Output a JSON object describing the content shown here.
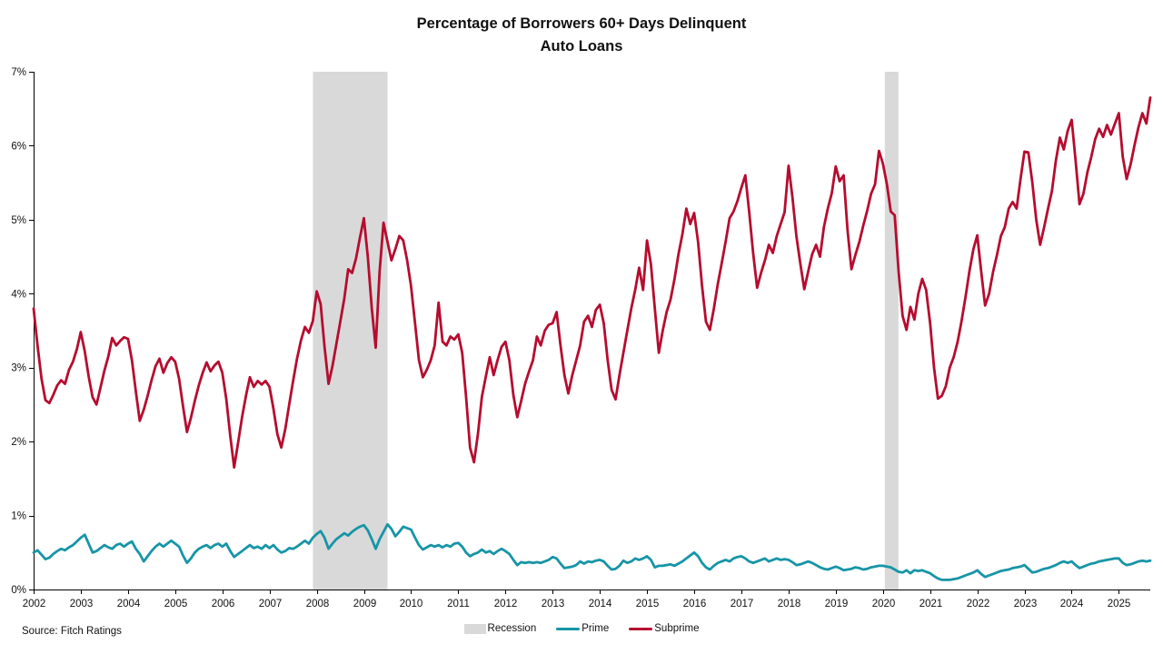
{
  "title": {
    "line1": "Percentage of Borrowers 60+ Days Delinquent",
    "line2": "Auto Loans"
  },
  "source": "Source: Fitch Ratings",
  "legend": [
    {
      "label": "Recession",
      "type": "box",
      "color": "#d9d9d9"
    },
    {
      "label": "Prime",
      "type": "line",
      "color": "#1795a6"
    },
    {
      "label": "Subprime",
      "type": "line",
      "color": "#b60c2f"
    }
  ],
  "chart_data": {
    "type": "line",
    "title": "Percentage of Borrowers 60+ Days Delinquent",
    "subtitle": "Auto Loans",
    "x_start_year": 2002,
    "x_interval": "monthly",
    "x_end_label": "Sep 2025",
    "ylim": [
      0,
      7
    ],
    "y_tick_labels": [
      "0%",
      "1%",
      "2%",
      "3%",
      "4%",
      "5%",
      "6%",
      "7%"
    ],
    "x_tick_years": [
      2002,
      2003,
      2004,
      2005,
      2006,
      2007,
      2008,
      2009,
      2010,
      2011,
      2012,
      2013,
      2014,
      2015,
      2016,
      2017,
      2018,
      2019,
      2020,
      2021,
      2022,
      2023,
      2024,
      2025
    ],
    "grid": false,
    "legend_position": "bottom",
    "recessions": [
      {
        "start_year": 2007.92,
        "end_year": 2009.5
      },
      {
        "start_year": 2020.04,
        "end_year": 2020.33
      }
    ],
    "series": [
      {
        "name": "Prime",
        "color": "#1795a6",
        "values": [
          0.5,
          0.53,
          0.47,
          0.41,
          0.43,
          0.48,
          0.52,
          0.55,
          0.53,
          0.57,
          0.6,
          0.65,
          0.7,
          0.74,
          0.62,
          0.5,
          0.52,
          0.56,
          0.6,
          0.57,
          0.55,
          0.6,
          0.62,
          0.58,
          0.62,
          0.65,
          0.55,
          0.48,
          0.38,
          0.45,
          0.52,
          0.58,
          0.62,
          0.58,
          0.62,
          0.66,
          0.62,
          0.58,
          0.46,
          0.36,
          0.42,
          0.5,
          0.55,
          0.58,
          0.6,
          0.56,
          0.6,
          0.62,
          0.58,
          0.62,
          0.52,
          0.44,
          0.48,
          0.52,
          0.56,
          0.6,
          0.56,
          0.58,
          0.55,
          0.6,
          0.56,
          0.6,
          0.54,
          0.5,
          0.52,
          0.56,
          0.55,
          0.58,
          0.62,
          0.66,
          0.62,
          0.7,
          0.75,
          0.79,
          0.7,
          0.55,
          0.62,
          0.68,
          0.72,
          0.76,
          0.73,
          0.78,
          0.82,
          0.85,
          0.87,
          0.8,
          0.68,
          0.55,
          0.68,
          0.78,
          0.88,
          0.82,
          0.72,
          0.78,
          0.85,
          0.83,
          0.81,
          0.7,
          0.6,
          0.54,
          0.57,
          0.6,
          0.58,
          0.6,
          0.57,
          0.6,
          0.58,
          0.62,
          0.63,
          0.58,
          0.5,
          0.45,
          0.48,
          0.5,
          0.54,
          0.5,
          0.52,
          0.48,
          0.52,
          0.55,
          0.52,
          0.48,
          0.4,
          0.33,
          0.37,
          0.36,
          0.37,
          0.36,
          0.37,
          0.36,
          0.38,
          0.4,
          0.44,
          0.42,
          0.35,
          0.29,
          0.3,
          0.31,
          0.33,
          0.38,
          0.35,
          0.38,
          0.37,
          0.39,
          0.4,
          0.38,
          0.32,
          0.27,
          0.28,
          0.32,
          0.39,
          0.36,
          0.38,
          0.42,
          0.4,
          0.42,
          0.45,
          0.4,
          0.3,
          0.32,
          0.32,
          0.33,
          0.34,
          0.32,
          0.35,
          0.38,
          0.42,
          0.46,
          0.5,
          0.45,
          0.36,
          0.3,
          0.27,
          0.32,
          0.36,
          0.38,
          0.4,
          0.38,
          0.42,
          0.44,
          0.45,
          0.42,
          0.38,
          0.36,
          0.38,
          0.4,
          0.42,
          0.38,
          0.4,
          0.42,
          0.4,
          0.41,
          0.4,
          0.37,
          0.33,
          0.34,
          0.36,
          0.38,
          0.36,
          0.33,
          0.3,
          0.28,
          0.27,
          0.29,
          0.31,
          0.29,
          0.26,
          0.27,
          0.28,
          0.3,
          0.29,
          0.27,
          0.28,
          0.3,
          0.31,
          0.32,
          0.32,
          0.31,
          0.3,
          0.27,
          0.24,
          0.23,
          0.26,
          0.22,
          0.26,
          0.25,
          0.26,
          0.24,
          0.22,
          0.18,
          0.15,
          0.13,
          0.13,
          0.13,
          0.14,
          0.15,
          0.17,
          0.19,
          0.21,
          0.23,
          0.26,
          0.21,
          0.17,
          0.19,
          0.21,
          0.23,
          0.25,
          0.26,
          0.27,
          0.29,
          0.3,
          0.31,
          0.33,
          0.28,
          0.23,
          0.24,
          0.26,
          0.28,
          0.29,
          0.31,
          0.33,
          0.36,
          0.38,
          0.36,
          0.38,
          0.33,
          0.29,
          0.31,
          0.33,
          0.35,
          0.36,
          0.38,
          0.39,
          0.4,
          0.41,
          0.42,
          0.42,
          0.36,
          0.33,
          0.34,
          0.36,
          0.38,
          0.39,
          0.38,
          0.39
        ]
      },
      {
        "name": "Subprime",
        "color": "#b60c2f",
        "values": [
          3.8,
          3.3,
          2.85,
          2.56,
          2.52,
          2.63,
          2.76,
          2.83,
          2.78,
          2.97,
          3.08,
          3.25,
          3.48,
          3.22,
          2.88,
          2.6,
          2.5,
          2.73,
          2.96,
          3.15,
          3.4,
          3.3,
          3.36,
          3.41,
          3.39,
          3.1,
          2.68,
          2.28,
          2.43,
          2.62,
          2.83,
          3.02,
          3.12,
          2.93,
          3.06,
          3.14,
          3.08,
          2.85,
          2.48,
          2.13,
          2.32,
          2.55,
          2.76,
          2.93,
          3.07,
          2.95,
          3.03,
          3.08,
          2.93,
          2.58,
          2.08,
          1.65,
          1.98,
          2.33,
          2.62,
          2.87,
          2.74,
          2.82,
          2.77,
          2.82,
          2.74,
          2.44,
          2.1,
          1.92,
          2.17,
          2.5,
          2.82,
          3.12,
          3.37,
          3.55,
          3.47,
          3.63,
          4.03,
          3.86,
          3.28,
          2.78,
          3.02,
          3.32,
          3.62,
          3.93,
          4.33,
          4.28,
          4.48,
          4.76,
          5.02,
          4.5,
          3.8,
          3.27,
          4.3,
          4.96,
          4.7,
          4.45,
          4.6,
          4.78,
          4.72,
          4.45,
          4.1,
          3.6,
          3.1,
          2.87,
          2.97,
          3.1,
          3.3,
          3.88,
          3.35,
          3.3,
          3.42,
          3.38,
          3.45,
          3.2,
          2.6,
          1.92,
          1.72,
          2.1,
          2.6,
          2.88,
          3.14,
          2.9,
          3.1,
          3.28,
          3.35,
          3.1,
          2.63,
          2.33,
          2.55,
          2.78,
          2.95,
          3.1,
          3.42,
          3.3,
          3.5,
          3.58,
          3.6,
          3.75,
          3.3,
          2.9,
          2.65,
          2.9,
          3.1,
          3.3,
          3.62,
          3.7,
          3.55,
          3.78,
          3.85,
          3.6,
          3.1,
          2.7,
          2.57,
          2.9,
          3.2,
          3.5,
          3.8,
          4.05,
          4.35,
          4.05,
          4.72,
          4.4,
          3.8,
          3.2,
          3.5,
          3.75,
          3.92,
          4.2,
          4.53,
          4.8,
          5.15,
          4.94,
          5.09,
          4.7,
          4.1,
          3.62,
          3.51,
          3.8,
          4.13,
          4.41,
          4.7,
          5.02,
          5.11,
          5.25,
          5.43,
          5.6,
          5.1,
          4.55,
          4.08,
          4.28,
          4.45,
          4.66,
          4.55,
          4.78,
          4.94,
          5.1,
          5.73,
          5.3,
          4.78,
          4.4,
          4.06,
          4.3,
          4.53,
          4.66,
          4.5,
          4.9,
          5.15,
          5.36,
          5.72,
          5.52,
          5.6,
          4.86,
          4.33,
          4.52,
          4.7,
          4.92,
          5.12,
          5.35,
          5.48,
          5.93,
          5.76,
          5.48,
          5.11,
          5.06,
          4.3,
          3.7,
          3.51,
          3.82,
          3.65,
          4.0,
          4.2,
          4.05,
          3.6,
          3.0,
          2.58,
          2.62,
          2.75,
          3.0,
          3.14,
          3.35,
          3.63,
          3.95,
          4.3,
          4.6,
          4.79,
          4.3,
          3.84,
          4.0,
          4.29,
          4.52,
          4.78,
          4.9,
          5.15,
          5.24,
          5.15,
          5.55,
          5.92,
          5.91,
          5.5,
          5.0,
          4.66,
          4.9,
          5.15,
          5.39,
          5.8,
          6.11,
          5.95,
          6.2,
          6.35,
          5.8,
          5.21,
          5.35,
          5.64,
          5.85,
          6.09,
          6.23,
          6.12,
          6.28,
          6.15,
          6.3,
          6.44,
          5.85,
          5.55,
          5.75,
          6.01,
          6.25,
          6.44,
          6.3,
          6.65
        ]
      }
    ]
  }
}
